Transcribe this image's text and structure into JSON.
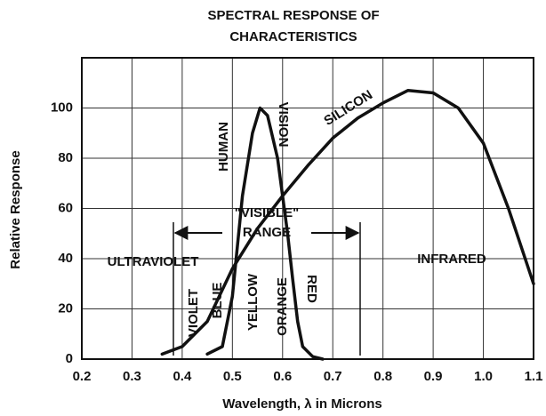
{
  "chart_data": {
    "type": "line",
    "title": [
      "SPECTRAL RESPONSE OF",
      "CHARACTERISTICS"
    ],
    "x_label": "Wavelength, λ in Microns",
    "y_label": "Relative Response",
    "xlim": [
      0.2,
      1.1
    ],
    "ylim": [
      0,
      120
    ],
    "xticks": [
      0.2,
      0.3,
      0.4,
      0.5,
      0.6,
      0.7,
      0.8,
      0.9,
      {
        "value": 1,
        "label": "1.0"
      },
      1.1
    ],
    "yticks": [
      0,
      20,
      40,
      60,
      80,
      100
    ],
    "grid": true,
    "series": [
      {
        "color": "#111111",
        "x": [
          0.45,
          0.48,
          0.5,
          0.51,
          0.52,
          0.54,
          0.555,
          0.57,
          0.59,
          0.61,
          0.62,
          0.63,
          0.64,
          0.66,
          0.68
        ],
        "values": [
          2,
          5,
          25,
          45,
          65,
          90,
          100,
          97,
          80,
          50,
          32,
          15,
          5,
          1,
          0
        ]
      },
      {
        "name": "SILICON",
        "color": "#111111",
        "x": [
          0.36,
          0.4,
          0.45,
          0.5,
          0.55,
          0.6,
          0.65,
          0.7,
          0.75,
          0.8,
          0.85,
          0.9,
          0.95,
          1.0,
          1.05,
          1.1
        ],
        "values": [
          2,
          5,
          15,
          36,
          52,
          65,
          77,
          88,
          96,
          102,
          107,
          106,
          100,
          86,
          60,
          30
        ]
      }
    ],
    "annotations": [
      "HUMAN",
      "VISION",
      "\"VISIBLE\"",
      "RANGE",
      "ULTRAVIOLET",
      "INFRARED",
      "VIOLET",
      "BLUE",
      "YELLOW",
      "ORANGE",
      "RED"
    ]
  }
}
